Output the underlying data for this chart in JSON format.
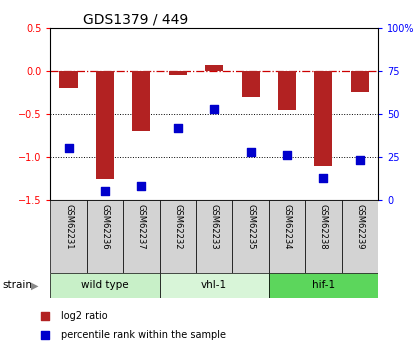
{
  "title": "GDS1379 / 449",
  "samples": [
    "GSM62231",
    "GSM62236",
    "GSM62237",
    "GSM62232",
    "GSM62233",
    "GSM62235",
    "GSM62234",
    "GSM62238",
    "GSM62239"
  ],
  "log2_ratio": [
    -0.2,
    -1.25,
    -0.7,
    -0.05,
    0.07,
    -0.3,
    -0.45,
    -1.1,
    -0.25
  ],
  "percentile_rank": [
    30,
    5,
    8,
    42,
    53,
    28,
    26,
    13,
    23
  ],
  "ylim_left": [
    -1.5,
    0.5
  ],
  "ylim_right": [
    0,
    100
  ],
  "right_ticks": [
    0,
    25,
    50,
    75,
    100
  ],
  "right_tick_labels": [
    "0",
    "25",
    "50",
    "75",
    "100%"
  ],
  "left_ticks": [
    -1.5,
    -1.0,
    -0.5,
    0.0,
    0.5
  ],
  "groups": [
    {
      "label": "wild type",
      "start": 0,
      "end": 3,
      "color": "#c8f0c8"
    },
    {
      "label": "vhl-1",
      "start": 3,
      "end": 6,
      "color": "#d8f5d8"
    },
    {
      "label": "hif-1",
      "start": 6,
      "end": 9,
      "color": "#5cd65c"
    }
  ],
  "bar_color": "#b22222",
  "dot_color": "#0000cc",
  "bar_width": 0.5,
  "dot_size": 30,
  "strain_label": "strain",
  "legend_bar_label": "log2 ratio",
  "legend_dot_label": "percentile rank within the sample",
  "title_fontsize": 10,
  "tick_fontsize": 7,
  "label_fontsize": 7.5
}
